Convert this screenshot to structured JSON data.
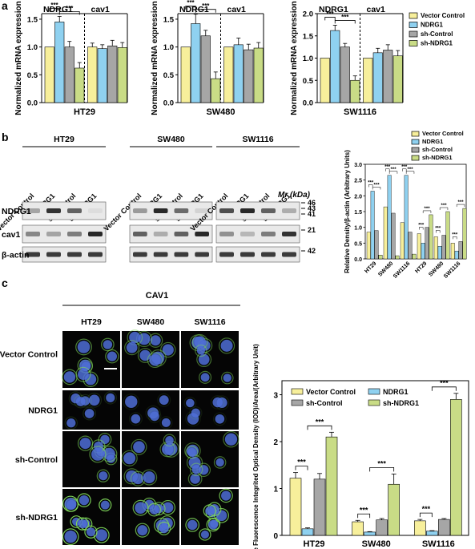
{
  "panel_labels": [
    "a",
    "b",
    "c"
  ],
  "colors": {
    "vector": "#f7ef9b",
    "ndrg1": "#8fd1f0",
    "sh_control": "#a6a6a6",
    "sh_ndrg1": "#c9dc86",
    "sig": "#000000",
    "blot_bg": "#e9e9e9",
    "cell_bg": "#050505",
    "nuclei": "#4f6fd6",
    "membrane": "#7fd65a"
  },
  "legend": [
    "Vector Control",
    "NDRG1",
    "sh-Control",
    "sh-NDRG1"
  ],
  "sig_label": "***",
  "chart_data": [
    {
      "id": "a-HT29",
      "type": "bar",
      "cell_line": "HT29",
      "group_labels": [
        "NDRG1",
        "cav1"
      ],
      "ylabel": "Normalized mRNA expression",
      "ylim": [
        0,
        1.6
      ],
      "yticks": [
        "0.0",
        "0.5",
        "1.0",
        "1.5"
      ],
      "groups": [
        [
          1.0,
          1.45,
          1.0,
          0.62
        ],
        [
          1.0,
          0.97,
          1.02,
          0.99
        ]
      ],
      "errors": [
        [
          0.0,
          0.1,
          0.1,
          0.1
        ],
        [
          0.07,
          0.07,
          0.1,
          0.09
        ]
      ],
      "sig": [
        [
          0,
          1
        ],
        [
          1,
          3
        ]
      ]
    },
    {
      "id": "a-SW480",
      "type": "bar",
      "cell_line": "SW480",
      "group_labels": [
        "NDRG1",
        "cav1"
      ],
      "ylabel": "Normalized mRNA expression",
      "ylim": [
        0,
        1.6
      ],
      "yticks": [
        "0.0",
        "0.5",
        "1.0",
        "1.5"
      ],
      "groups": [
        [
          1.0,
          1.42,
          1.2,
          0.43
        ],
        [
          1.0,
          1.04,
          0.95,
          0.98
        ]
      ],
      "errors": [
        [
          0.0,
          0.17,
          0.1,
          0.12
        ],
        [
          0.0,
          0.12,
          0.1,
          0.1
        ]
      ],
      "sig": [
        [
          0,
          1
        ],
        [
          1,
          3
        ]
      ]
    },
    {
      "id": "a-SW1116",
      "type": "bar",
      "cell_line": "SW1116",
      "group_labels": [
        "NDRG1",
        "cav1"
      ],
      "ylabel": "Normalized mRNA expression",
      "ylim": [
        0,
        2.0
      ],
      "yticks": [
        "0.0",
        "0.5",
        "1.0",
        "1.5",
        "2.0"
      ],
      "groups": [
        [
          1.0,
          1.62,
          1.25,
          0.5
        ],
        [
          1.0,
          1.12,
          1.18,
          1.05
        ]
      ],
      "errors": [
        [
          0.0,
          0.12,
          0.08,
          0.1
        ],
        [
          0.0,
          0.1,
          0.12,
          0.12
        ]
      ],
      "sig": [
        [
          0,
          1
        ],
        [
          1,
          3
        ]
      ]
    },
    {
      "id": "b-quant",
      "type": "bar",
      "ylabel": "Relative Density/β-actin (Arbitrary Units)",
      "ylim": [
        0,
        3.0
      ],
      "yticks": [
        "0.0",
        "0.5",
        "1.0",
        "1.5",
        "2.0",
        "2.5",
        "3.0"
      ],
      "categories": [
        "HT29",
        "SW480",
        "SW1116",
        "HT29",
        "SW480",
        "SW1116"
      ],
      "series": [
        {
          "name": "Vector Control",
          "values": [
            0.85,
            1.65,
            1.15,
            0.8,
            0.7,
            0.5
          ]
        },
        {
          "name": "NDRG1",
          "values": [
            2.15,
            2.65,
            2.65,
            0.5,
            0.4,
            0.25
          ]
        },
        {
          "name": "sh-Control",
          "values": [
            0.9,
            1.45,
            0.85,
            1.0,
            0.75,
            0.55
          ]
        },
        {
          "name": "sh-NDRG1",
          "values": [
            0.12,
            0.1,
            0.15,
            1.4,
            1.5,
            1.6
          ]
        }
      ],
      "sig_pairs": [
        [
          0,
          1
        ],
        [
          1,
          3
        ]
      ]
    },
    {
      "id": "c-quant",
      "type": "bar",
      "ylabel": "Relative Fluorescence Integrited Optical Density (IOD)/Area/(Arbitrary Unit)",
      "ylim": [
        0,
        3.3
      ],
      "yticks": [
        "0",
        "1",
        "2",
        "3"
      ],
      "categories": [
        "HT29",
        "SW480",
        "SW1116"
      ],
      "series": [
        {
          "name": "Vector Control",
          "values": [
            1.22,
            0.29,
            0.31
          ],
          "errors": [
            0.12,
            0.03,
            0.03
          ]
        },
        {
          "name": "NDRG1",
          "values": [
            0.14,
            0.07,
            0.09
          ],
          "errors": [
            0.02,
            0.01,
            0.01
          ]
        },
        {
          "name": "sh-Control",
          "values": [
            1.2,
            0.33,
            0.34
          ],
          "errors": [
            0.12,
            0.03,
            0.02
          ]
        },
        {
          "name": "sh-NDRG1",
          "values": [
            2.1,
            1.09,
            2.9
          ],
          "errors": [
            0.1,
            0.22,
            0.13
          ]
        }
      ],
      "sig_pairs": [
        [
          0,
          1
        ],
        [
          1,
          3
        ]
      ]
    }
  ],
  "blot": {
    "cell_lines": [
      "HT29",
      "SW480",
      "SW1116"
    ],
    "lane_labels": [
      "Vector Control",
      "NDRG1",
      "sh-Control",
      "sh-NDRG1"
    ],
    "rows": [
      "NDRG1",
      "cav1",
      "β-actin"
    ],
    "mr_label": "Mr (kDa)",
    "markers": [
      "46",
      "43",
      "41",
      "21",
      "42"
    ],
    "intensities": {
      "NDRG1": [
        [
          0.35,
          0.95,
          0.7,
          0.05
        ],
        [
          0.4,
          1.0,
          0.65,
          0.1
        ],
        [
          0.8,
          1.0,
          0.7,
          0.3
        ]
      ],
      "cav1": [
        [
          0.5,
          0.35,
          0.55,
          1.0
        ],
        [
          0.7,
          0.3,
          0.7,
          1.0
        ],
        [
          0.45,
          0.25,
          0.55,
          0.95
        ]
      ],
      "β-actin": [
        [
          0.9,
          0.9,
          0.9,
          0.9
        ],
        [
          0.9,
          0.9,
          0.9,
          0.9
        ],
        [
          0.9,
          0.9,
          0.9,
          0.9
        ]
      ]
    }
  },
  "microscopy": {
    "title": "CAV1",
    "columns": [
      "HT29",
      "SW480",
      "SW1116"
    ],
    "rows": [
      "Vector Control",
      "NDRG1",
      "sh-Control",
      "sh-NDRG1"
    ],
    "membrane_level": [
      [
        0.6,
        0.5,
        0.5
      ],
      [
        0.15,
        0.1,
        0.1
      ],
      [
        0.6,
        0.5,
        0.5
      ],
      [
        0.95,
        0.8,
        0.85
      ]
    ]
  }
}
